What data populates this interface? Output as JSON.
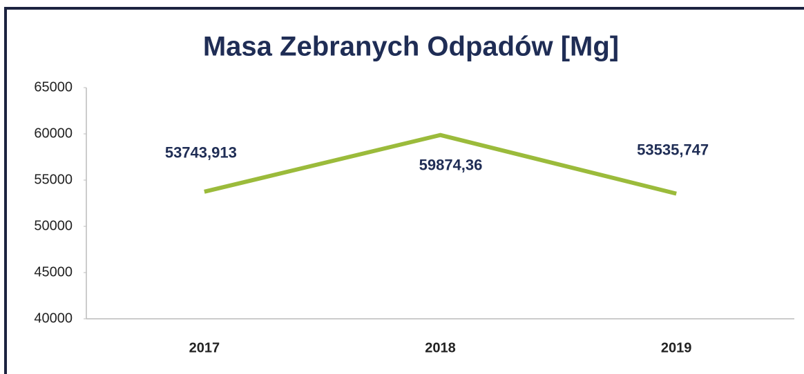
{
  "chart_data": {
    "type": "line",
    "title": "Masa Zebranych Odpadów [Mg]",
    "categories": [
      "2017",
      "2018",
      "2019"
    ],
    "series": [
      {
        "color": "#9bbb3b",
        "values": [
          53743.913,
          59874.36,
          53535.747
        ],
        "value_labels": [
          "53743,913",
          "59874,36",
          "53535,747"
        ]
      }
    ],
    "ylim": [
      40000,
      65000
    ],
    "yticks": [
      40000,
      45000,
      50000,
      55000,
      60000,
      65000
    ],
    "grid": false
  }
}
